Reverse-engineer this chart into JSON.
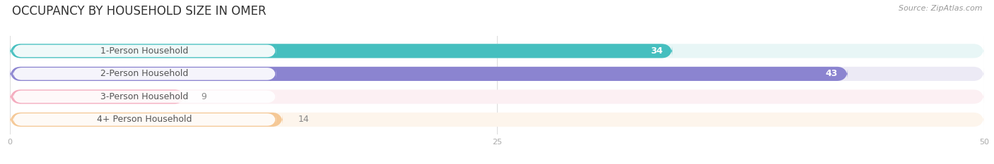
{
  "title": "OCCUPANCY BY HOUSEHOLD SIZE IN OMER",
  "source": "Source: ZipAtlas.com",
  "categories": [
    "1-Person Household",
    "2-Person Household",
    "3-Person Household",
    "4+ Person Household"
  ],
  "values": [
    34,
    43,
    9,
    14
  ],
  "bar_colors": [
    "#45BFBF",
    "#8B84D0",
    "#F4ABBE",
    "#F5C896"
  ],
  "bar_bg_colors": [
    "#E8F6F6",
    "#ECEAF5",
    "#FCF0F3",
    "#FDF5EC"
  ],
  "label_box_colors": [
    "#E0F5F5",
    "#E8E6F5",
    "#FAE8EE",
    "#FDF0DC"
  ],
  "label_text_colors": [
    "#2A8C8C",
    "#6B65B5",
    "#C87090",
    "#C8904A"
  ],
  "value_text_colors": [
    "white",
    "white",
    "#888888",
    "#888888"
  ],
  "xlim": [
    0,
    50
  ],
  "xticks": [
    0,
    25,
    50
  ],
  "title_fontsize": 12,
  "source_fontsize": 8,
  "label_fontsize": 9,
  "value_fontsize": 9,
  "bar_height": 0.62,
  "background_color": "#ffffff"
}
